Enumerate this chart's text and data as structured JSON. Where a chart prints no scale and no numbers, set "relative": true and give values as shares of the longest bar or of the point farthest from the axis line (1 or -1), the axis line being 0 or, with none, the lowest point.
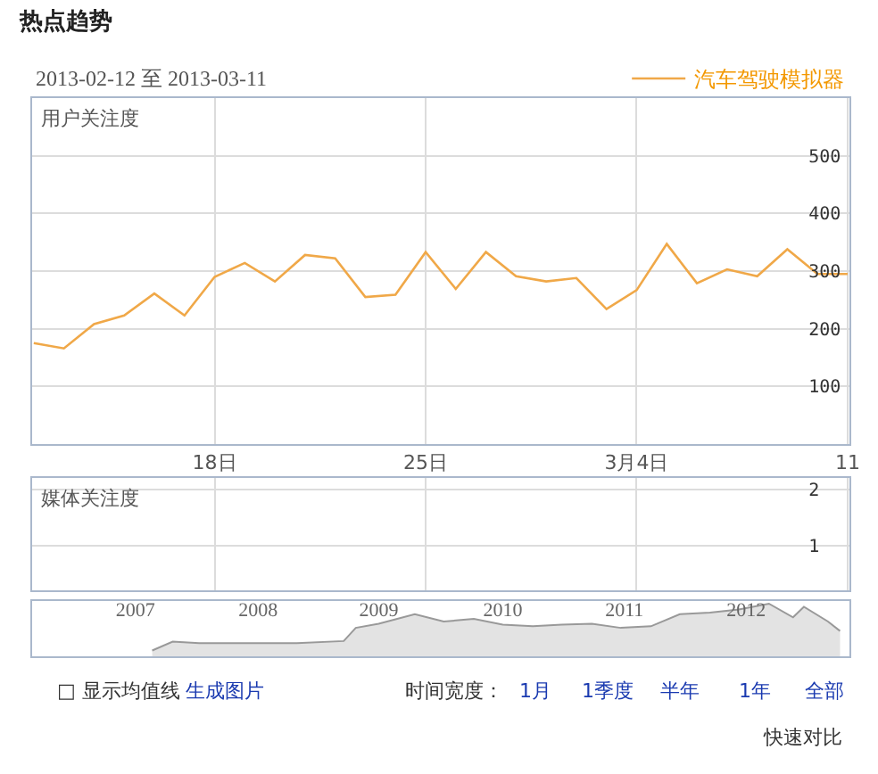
{
  "chart_data": [
    {
      "type": "line",
      "title": "热点趋势",
      "subtitle": "2013-02-12 至 2013-03-11",
      "ylabel": "用户关注度",
      "x": [
        "2013-02-12",
        "2013-02-13",
        "2013-02-14",
        "2013-02-15",
        "2013-02-16",
        "2013-02-17",
        "2013-02-18",
        "2013-02-19",
        "2013-02-20",
        "2013-02-21",
        "2013-02-22",
        "2013-02-23",
        "2013-02-24",
        "2013-02-25",
        "2013-02-26",
        "2013-02-27",
        "2013-02-28",
        "2013-03-01",
        "2013-03-02",
        "2013-03-03",
        "2013-03-04",
        "2013-03-05",
        "2013-03-06",
        "2013-03-07",
        "2013-03-08",
        "2013-03-09",
        "2013-03-10",
        "2013-03-11"
      ],
      "series": [
        {
          "name": "汽车驾驶模拟器",
          "color": "#f0a848",
          "values": [
            175,
            166,
            208,
            223,
            261,
            223,
            290,
            314,
            282,
            328,
            322,
            255,
            259,
            333,
            269,
            333,
            291,
            282,
            288,
            234,
            267,
            347,
            279,
            303,
            291,
            338,
            295,
            295
          ]
        }
      ],
      "xlim": [
        "2013-02-12",
        "2013-03-11"
      ],
      "xticks": [
        {
          "value": "2013-02-18",
          "label": "18日"
        },
        {
          "value": "2013-02-25",
          "label": "25日"
        },
        {
          "value": "2013-03-04",
          "label": "3月4日"
        },
        {
          "value": "2013-03-11",
          "label": "11"
        }
      ],
      "ylim": [
        0,
        600
      ],
      "yticks": [
        100,
        200,
        300,
        400,
        500
      ],
      "grid": true,
      "legend": "top right",
      "marker": "none",
      "line_style": "solid"
    },
    {
      "type": "line",
      "ylabel": "媒体关注度",
      "xlim": [
        "2013-02-12",
        "2013-03-11"
      ],
      "xticks": [
        {
          "value": "2013-02-18",
          "label": null
        },
        {
          "value": "2013-02-25",
          "label": null
        },
        {
          "value": "2013-03-04",
          "label": null
        },
        {
          "value": "2013-03-11",
          "label": null
        }
      ],
      "ylim": [
        0.2,
        2.2
      ],
      "yticks": [
        1,
        2
      ],
      "grid": true,
      "tick_labels": "y",
      "legend": false
    },
    {
      "type": "area",
      "relative": true,
      "x": [
        2007.41,
        2007.58,
        2007.8,
        2008.12,
        2008.61,
        2009.0,
        2009.1,
        2009.29,
        2009.59,
        2009.83,
        2010.08,
        2010.32,
        2010.57,
        2010.81,
        2011.06,
        2011.3,
        2011.55,
        2011.79,
        2012.04,
        2012.28,
        2012.53,
        2012.73,
        2012.82,
        2013.02,
        2013.12
      ],
      "series": [
        {
          "color": "#999999",
          "values": [
            0.11,
            0.28,
            0.25,
            0.25,
            0.25,
            0.29,
            0.54,
            0.62,
            0.8,
            0.66,
            0.71,
            0.6,
            0.57,
            0.6,
            0.62,
            0.54,
            0.57,
            0.8,
            0.83,
            0.89,
            1,
            0.74,
            0.94,
            0.66,
            0.48
          ]
        }
      ],
      "xlim": [
        2006.41,
        2013.2
      ],
      "xticks": [
        {
          "value": 2007.27,
          "label": "2007"
        },
        {
          "value": 2008.29,
          "label": "2008"
        },
        {
          "value": 2009.29,
          "label": "2009"
        },
        {
          "value": 2010.32,
          "label": "2010"
        },
        {
          "value": 2011.33,
          "label": "2011"
        },
        {
          "value": 2012.34,
          "label": "2012"
        }
      ],
      "tick_labels": "x",
      "grid": false,
      "legend": false,
      "annotations": [
        "□ 显示均值线",
        "生成图片",
        "时间宽度：",
        "1月",
        "1季度",
        "半年",
        "1年",
        "全部",
        "快速对比"
      ]
    }
  ]
}
